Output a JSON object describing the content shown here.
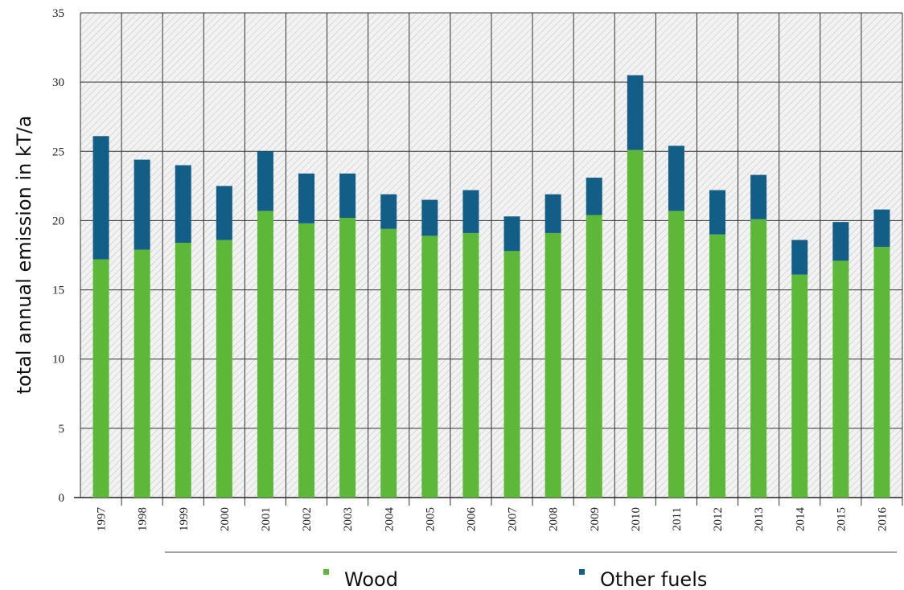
{
  "chart_data": {
    "type": "stacked-bar",
    "y_label": "total annual emission in kT/a",
    "categories": [
      "1997",
      "1998",
      "1999",
      "2000",
      "2001",
      "2002",
      "2003",
      "2004",
      "2005",
      "2006",
      "2007",
      "2008",
      "2009",
      "2010",
      "2011",
      "2012",
      "2013",
      "2014",
      "2015",
      "2016"
    ],
    "series": [
      {
        "name": "Wood",
        "color": "#5db83a",
        "values": [
          17.2,
          17.9,
          18.4,
          18.6,
          20.7,
          19.8,
          20.2,
          19.4,
          18.9,
          19.1,
          17.8,
          19.1,
          20.4,
          25.1,
          20.7,
          19.0,
          20.1,
          16.1,
          17.1,
          18.1
        ]
      },
      {
        "name": "Other fuels",
        "color": "#135e86",
        "values": [
          8.9,
          6.5,
          5.6,
          3.9,
          4.3,
          3.6,
          3.2,
          2.5,
          2.6,
          3.1,
          2.5,
          2.8,
          2.7,
          5.4,
          4.7,
          3.2,
          3.2,
          2.5,
          2.8,
          2.7
        ]
      }
    ],
    "ylim": [
      0,
      35
    ],
    "yticks": [
      0,
      5,
      10,
      15,
      20,
      25,
      30,
      35
    ],
    "grid": true
  }
}
